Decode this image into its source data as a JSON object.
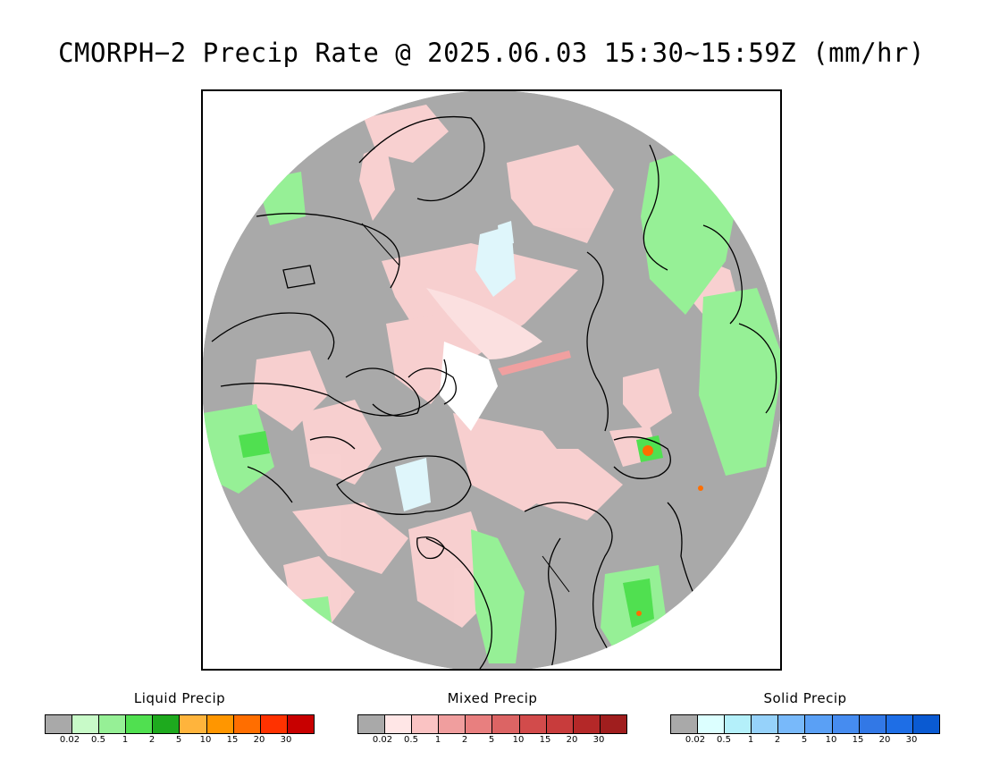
{
  "title": "CMORPH−2 Precip Rate @ 2025.06.03 15:30~15:59Z (mm/hr)",
  "map": {
    "projection": "north polar stereographic",
    "background_color": "#a9a9a9",
    "coastline_color": "#000000"
  },
  "legends": [
    {
      "title": "Liquid Precip",
      "colors": [
        "#a9a9a9",
        "#c8fac8",
        "#96f096",
        "#50e050",
        "#1eaa1e",
        "#ffb43c",
        "#ff9600",
        "#ff6e00",
        "#ff3200",
        "#c80000"
      ],
      "ticks": [
        "0.02",
        "0.5",
        "1",
        "2",
        "5",
        "10",
        "15",
        "20",
        "30"
      ]
    },
    {
      "title": "Mixed Precip",
      "colors": [
        "#a9a9a9",
        "#ffe6e6",
        "#fac3c3",
        "#f09e9e",
        "#e87f7f",
        "#dc6464",
        "#d24b4b",
        "#c83c3c",
        "#b42828",
        "#a01e1e"
      ],
      "ticks": [
        "0.02",
        "0.5",
        "1",
        "2",
        "5",
        "10",
        "15",
        "20",
        "30"
      ]
    },
    {
      "title": "Solid Precip",
      "colors": [
        "#a9a9a9",
        "#dcffff",
        "#b4f0fa",
        "#96d2fa",
        "#78b9fa",
        "#5aa0f5",
        "#468cf0",
        "#3278e6",
        "#1e6ee6",
        "#0a5ad2"
      ],
      "ticks": [
        "0.02",
        "0.5",
        "1",
        "2",
        "5",
        "10",
        "15",
        "20",
        "30"
      ]
    }
  ]
}
